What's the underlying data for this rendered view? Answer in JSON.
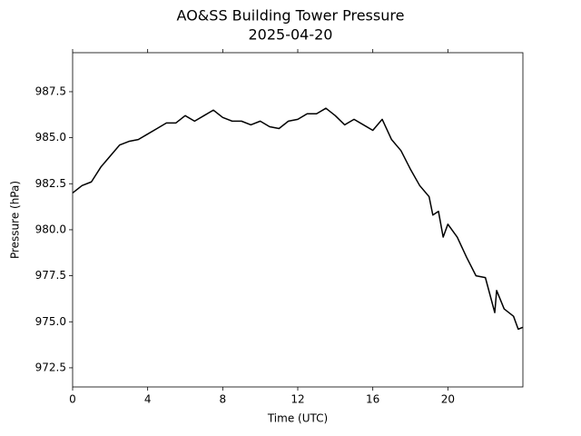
{
  "chart_data": {
    "type": "line",
    "title": "AO&SS Building Tower Pressure",
    "subtitle": "2025-04-20",
    "x_label": "Time (UTC)",
    "y_label": "Pressure (hPa)",
    "x": [
      0,
      0.5,
      1,
      1.5,
      2,
      2.5,
      3,
      3.5,
      4,
      4.5,
      5,
      5.5,
      6,
      6.5,
      7,
      7.5,
      8,
      8.5,
      9,
      9.5,
      10,
      10.5,
      11,
      11.5,
      12,
      12.5,
      13,
      13.5,
      14,
      14.5,
      15,
      15.5,
      16,
      16.5,
      17,
      17.5,
      18,
      18.5,
      19,
      19.2,
      19.5,
      19.75,
      20,
      20.5,
      21,
      21.5,
      22,
      22.5,
      22.6,
      23,
      23.5,
      23.75,
      24
    ],
    "series": [
      {
        "name": "Pressure",
        "color": "#000000",
        "values": [
          982.0,
          982.4,
          982.6,
          983.4,
          984.0,
          984.6,
          984.8,
          984.9,
          985.2,
          985.5,
          985.8,
          985.8,
          986.2,
          985.9,
          986.2,
          986.5,
          986.1,
          985.9,
          985.9,
          985.7,
          985.9,
          985.6,
          985.5,
          985.9,
          986.0,
          986.3,
          986.3,
          986.6,
          986.2,
          985.7,
          986.0,
          985.7,
          985.4,
          986.0,
          984.9,
          984.3,
          983.3,
          982.4,
          981.8,
          980.8,
          981.0,
          979.6,
          980.3,
          979.6,
          978.5,
          977.5,
          977.4,
          975.5,
          976.7,
          975.7,
          975.3,
          974.6,
          974.7
        ]
      }
    ],
    "xlim": [
      0,
      24
    ],
    "xticks": [
      0,
      4,
      8,
      12,
      16,
      20
    ],
    "ylim": [
      971.46,
      989.62
    ],
    "yticks": [
      {
        "value": 972.5,
        "label": "972.5"
      },
      {
        "value": 975,
        "label": "975.0"
      },
      {
        "value": 977.5,
        "label": "977.5"
      },
      {
        "value": 980,
        "label": "980.0"
      },
      {
        "value": 982.5,
        "label": "982.5"
      },
      {
        "value": 985,
        "label": "985.0"
      },
      {
        "value": 987.5,
        "label": "987.5"
      }
    ],
    "grid": false
  }
}
